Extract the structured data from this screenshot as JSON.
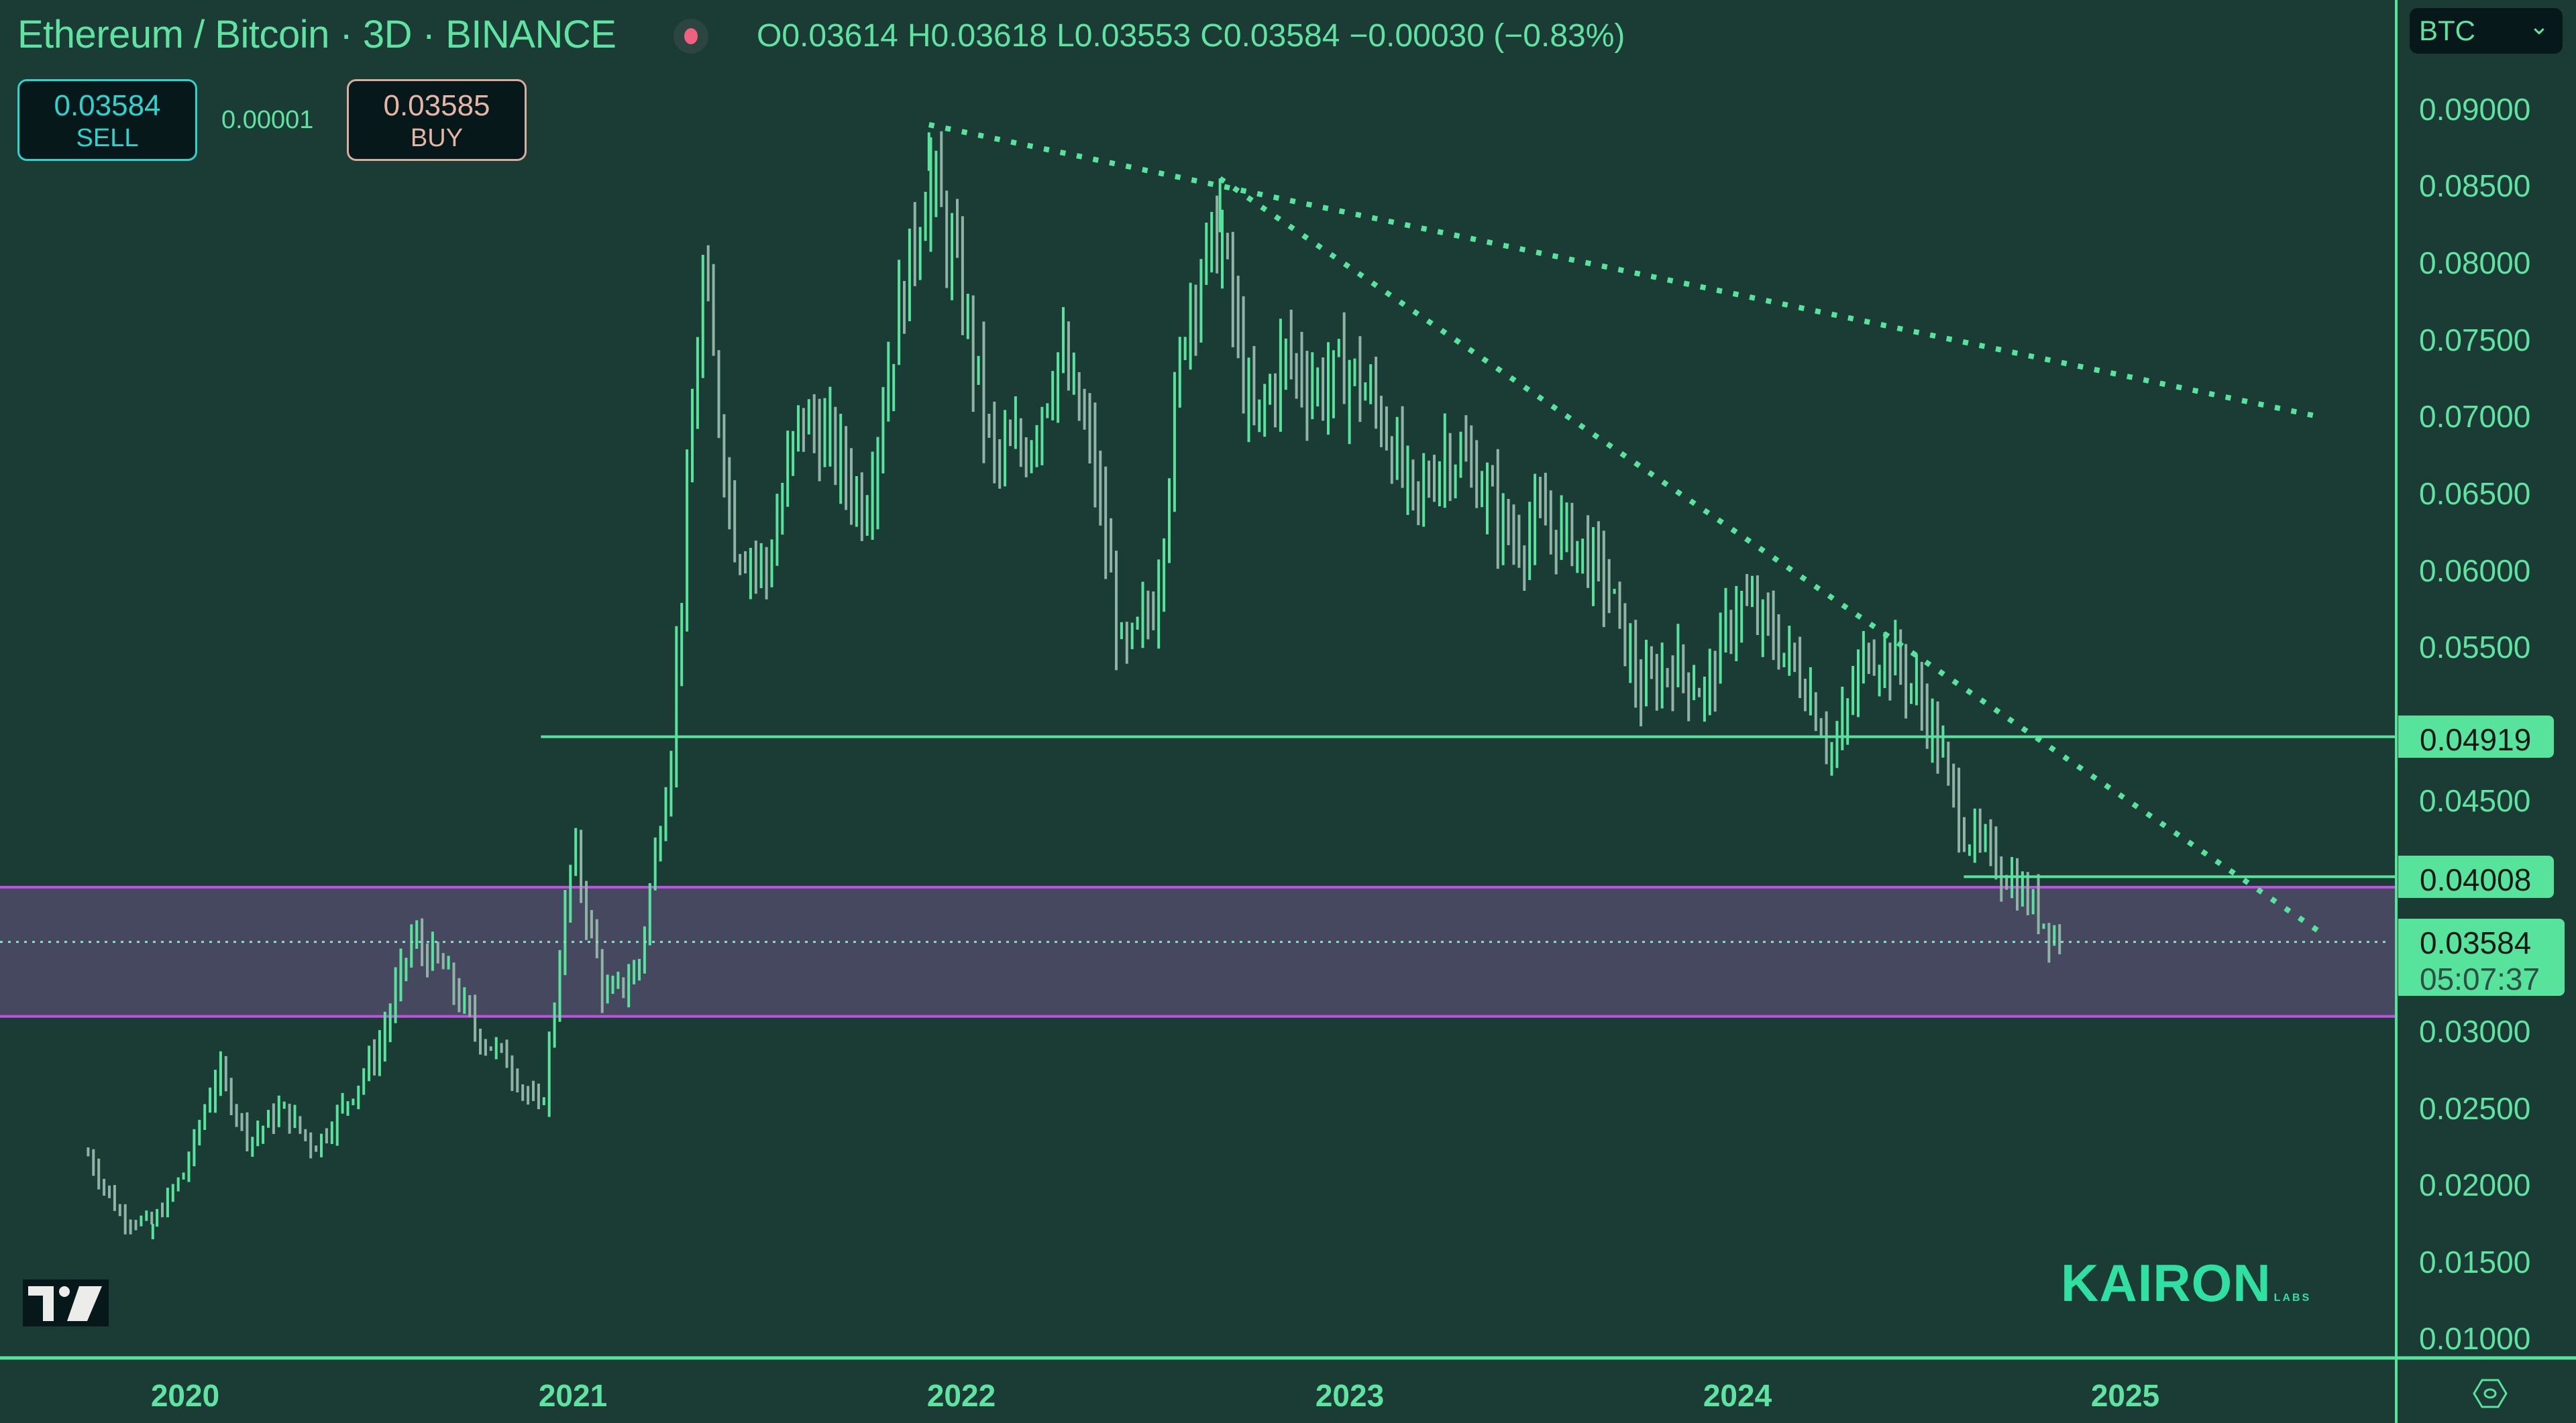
{
  "header": {
    "title": "Ethereum / Bitcoin · 3D · BINANCE",
    "ohlc": {
      "open": "O0.03614",
      "high": "H0.03618",
      "low": "L0.03553",
      "close": "C0.03584",
      "change": "−0.00030 (−0.83%)"
    },
    "live_indicator_color": "#f0607f"
  },
  "trade": {
    "sell_price": "0.03584",
    "sell_label": "SELL",
    "spread": "0.00001",
    "buy_price": "0.03585",
    "buy_label": "BUY"
  },
  "price_axis": {
    "currency_select": "BTC",
    "ticks": [
      "0.09000",
      "0.08500",
      "0.08000",
      "0.07500",
      "0.07000",
      "0.06500",
      "0.06000",
      "0.05500",
      "0.04500",
      "0.03000",
      "0.02500",
      "0.02000",
      "0.01500",
      "0.01000"
    ],
    "tags": {
      "level_1": "0.04919",
      "level_2": "0.04008",
      "last_price": "0.03584",
      "countdown": "05:07:37"
    }
  },
  "time_axis": {
    "labels": [
      "2020",
      "2021",
      "2022",
      "2023",
      "2024",
      "2025"
    ]
  },
  "watermarks": {
    "brand": "KAIRON",
    "brand_sub": "LABS"
  },
  "colors": {
    "background": "#1b3b35",
    "bars": "#57e39c",
    "zone_fill": "#45485e",
    "zone_border": "#c14fe0",
    "tag_bg": "#57e39c"
  },
  "chart_data": {
    "type": "bar",
    "title": "Ethereum / Bitcoin · 3D · BINANCE",
    "xlabel": "",
    "ylabel": "BTC",
    "ylim": [
      0.0095,
      0.093
    ],
    "x_range": [
      "2019-10",
      "2025-07"
    ],
    "grid": false,
    "approx_close_path": [
      {
        "x": "2019-10",
        "y": 0.022
      },
      {
        "x": "2019-11",
        "y": 0.018
      },
      {
        "x": "2019-12",
        "y": 0.0175
      },
      {
        "x": "2020-01",
        "y": 0.021
      },
      {
        "x": "2020-02",
        "y": 0.0275
      },
      {
        "x": "2020-03",
        "y": 0.023
      },
      {
        "x": "2020-04",
        "y": 0.025
      },
      {
        "x": "2020-05",
        "y": 0.0225
      },
      {
        "x": "2020-06",
        "y": 0.0255
      },
      {
        "x": "2020-07",
        "y": 0.029
      },
      {
        "x": "2020-08",
        "y": 0.036
      },
      {
        "x": "2020-09",
        "y": 0.034
      },
      {
        "x": "2020-10",
        "y": 0.03
      },
      {
        "x": "2020-11",
        "y": 0.028
      },
      {
        "x": "2020-12",
        "y": 0.0245
      },
      {
        "x": "2021-01",
        "y": 0.042
      },
      {
        "x": "2021-02",
        "y": 0.032
      },
      {
        "x": "2021-03",
        "y": 0.034
      },
      {
        "x": "2021-04",
        "y": 0.048
      },
      {
        "x": "2021-05",
        "y": 0.079
      },
      {
        "x": "2021-06",
        "y": 0.062
      },
      {
        "x": "2021-07",
        "y": 0.06
      },
      {
        "x": "2021-08",
        "y": 0.07
      },
      {
        "x": "2021-09",
        "y": 0.068
      },
      {
        "x": "2021-10",
        "y": 0.064
      },
      {
        "x": "2021-11",
        "y": 0.076
      },
      {
        "x": "2021-12",
        "y": 0.086
      },
      {
        "x": "2022-01",
        "y": 0.078
      },
      {
        "x": "2022-02",
        "y": 0.067
      },
      {
        "x": "2022-03",
        "y": 0.068
      },
      {
        "x": "2022-04",
        "y": 0.074
      },
      {
        "x": "2022-05",
        "y": 0.068
      },
      {
        "x": "2022-06",
        "y": 0.054
      },
      {
        "x": "2022-07",
        "y": 0.058
      },
      {
        "x": "2022-08",
        "y": 0.078
      },
      {
        "x": "2022-09",
        "y": 0.082
      },
      {
        "x": "2022-10",
        "y": 0.069
      },
      {
        "x": "2022-11",
        "y": 0.074
      },
      {
        "x": "2022-12",
        "y": 0.072
      },
      {
        "x": "2023-01",
        "y": 0.073
      },
      {
        "x": "2023-02",
        "y": 0.07
      },
      {
        "x": "2023-03",
        "y": 0.064
      },
      {
        "x": "2023-04",
        "y": 0.068
      },
      {
        "x": "2023-05",
        "y": 0.066
      },
      {
        "x": "2023-06",
        "y": 0.062
      },
      {
        "x": "2023-07",
        "y": 0.063
      },
      {
        "x": "2023-08",
        "y": 0.062
      },
      {
        "x": "2023-09",
        "y": 0.059
      },
      {
        "x": "2023-10",
        "y": 0.052
      },
      {
        "x": "2023-11",
        "y": 0.054
      },
      {
        "x": "2023-12",
        "y": 0.052
      },
      {
        "x": "2024-01",
        "y": 0.058
      },
      {
        "x": "2024-02",
        "y": 0.056
      },
      {
        "x": "2024-03",
        "y": 0.053
      },
      {
        "x": "2024-04",
        "y": 0.048
      },
      {
        "x": "2024-05",
        "y": 0.055
      },
      {
        "x": "2024-06",
        "y": 0.054
      },
      {
        "x": "2024-07",
        "y": 0.05
      },
      {
        "x": "2024-08",
        "y": 0.043
      },
      {
        "x": "2024-09",
        "y": 0.041
      },
      {
        "x": "2024-10",
        "y": 0.0385
      },
      {
        "x": "2024-11",
        "y": 0.03584
      }
    ],
    "extremes": {
      "all_time_high": 0.0885,
      "ath_date": "2021-12",
      "secondary_high": 0.0855,
      "secondary_high_date": "2022-09",
      "cycle_low": 0.0165,
      "cycle_low_date": "2019-12"
    },
    "last": {
      "open": 0.03614,
      "high": 0.03618,
      "low": 0.03553,
      "close": 0.03584,
      "change": -0.0003,
      "change_pct": -0.83
    },
    "annotations": [
      {
        "type": "hline",
        "label": "0.04919",
        "value": 0.04919,
        "from": "2020-12"
      },
      {
        "type": "hline",
        "label": "0.04008",
        "value": 0.04008,
        "from": "2024-08"
      },
      {
        "type": "zone",
        "top": 0.0394,
        "bottom": 0.031,
        "color": "#c14fe0"
      },
      {
        "type": "trendline",
        "style": "dotted",
        "from": {
          "x": "2021-12",
          "y": 0.089
        },
        "to": {
          "x": "2025-07",
          "y": 0.07
        }
      },
      {
        "type": "trendline",
        "style": "dotted",
        "from": {
          "x": "2022-09",
          "y": 0.0855
        },
        "to": {
          "x": "2025-07",
          "y": 0.0365
        }
      },
      {
        "type": "price_line",
        "style": "dotted",
        "value": 0.03584
      }
    ]
  }
}
